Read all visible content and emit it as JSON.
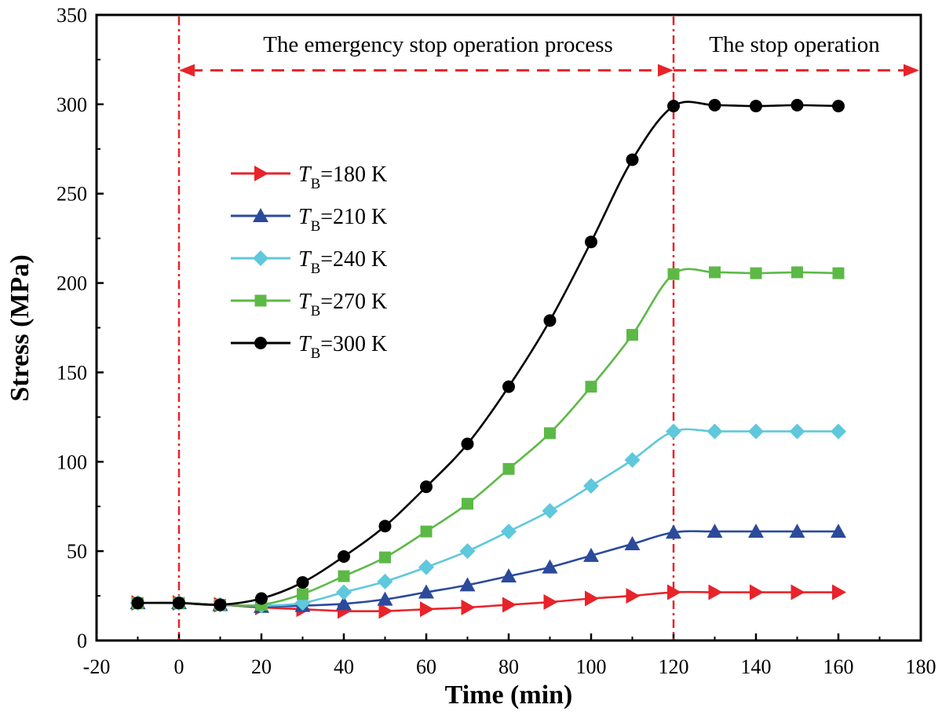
{
  "chart_data": {
    "type": "line",
    "title": "",
    "xlabel": "Time (min)",
    "ylabel": "Stress (MPa)",
    "xlim": [
      -20,
      180
    ],
    "ylim": [
      0,
      350
    ],
    "xticks": [
      -20,
      0,
      20,
      40,
      60,
      80,
      100,
      120,
      140,
      160,
      180
    ],
    "yticks": [
      0,
      50,
      100,
      150,
      200,
      250,
      300,
      350
    ],
    "grid": false,
    "legend_position": "upper-left",
    "x": [
      -10,
      0,
      10,
      20,
      30,
      40,
      50,
      60,
      70,
      80,
      90,
      100,
      110,
      120,
      130,
      140,
      150,
      160
    ],
    "series": [
      {
        "name": "T_B=180 K",
        "legend_symbol": "T",
        "legend_subscript": "B",
        "legend_rest": "=180 K",
        "color": "#e8232a",
        "marker": "triangle-right",
        "values": [
          21,
          21,
          20,
          18.5,
          17.5,
          16.5,
          16.5,
          17.5,
          18.5,
          20,
          21.5,
          23.5,
          25,
          27,
          27,
          27,
          27,
          27
        ]
      },
      {
        "name": "T_B=210 K",
        "legend_symbol": "T",
        "legend_subscript": "B",
        "legend_rest": "=210 K",
        "color": "#2c4a9b",
        "marker": "triangle-up",
        "values": [
          21,
          21,
          20,
          19,
          19.5,
          20.5,
          23,
          27,
          31,
          36,
          41,
          47.5,
          54,
          60.5,
          61,
          61,
          61,
          61
        ]
      },
      {
        "name": "T_B=240 K",
        "legend_symbol": "T",
        "legend_subscript": "B",
        "legend_rest": "=240 K",
        "color": "#5fc8dc",
        "marker": "diamond",
        "values": [
          21,
          21,
          20,
          19.5,
          21,
          27,
          33,
          41,
          50,
          61,
          72.5,
          86.5,
          101,
          117,
          117,
          117,
          117,
          117
        ]
      },
      {
        "name": "T_B=270 K",
        "legend_symbol": "T",
        "legend_subscript": "B",
        "legend_rest": "=270 K",
        "color": "#5cb946",
        "marker": "square",
        "values": [
          21,
          21,
          20,
          20,
          26,
          36,
          46.5,
          61,
          76.5,
          96,
          116,
          142,
          171,
          205,
          206,
          205.5,
          206,
          205.5
        ]
      },
      {
        "name": "T_B=300 K",
        "legend_symbol": "T",
        "legend_subscript": "B",
        "legend_rest": "=300 K",
        "color": "#000000",
        "marker": "circle",
        "values": [
          21,
          21,
          20,
          23.5,
          32.5,
          47,
          64,
          86,
          110,
          142,
          179,
          223,
          269,
          299,
          299.5,
          299,
          299.5,
          299
        ]
      }
    ],
    "annotations": {
      "left_text": "The emergency stop operation process",
      "right_text": "The stop operation",
      "vlines_x": [
        0,
        120
      ],
      "arrow_y": 319,
      "color": "#e8232a"
    }
  }
}
